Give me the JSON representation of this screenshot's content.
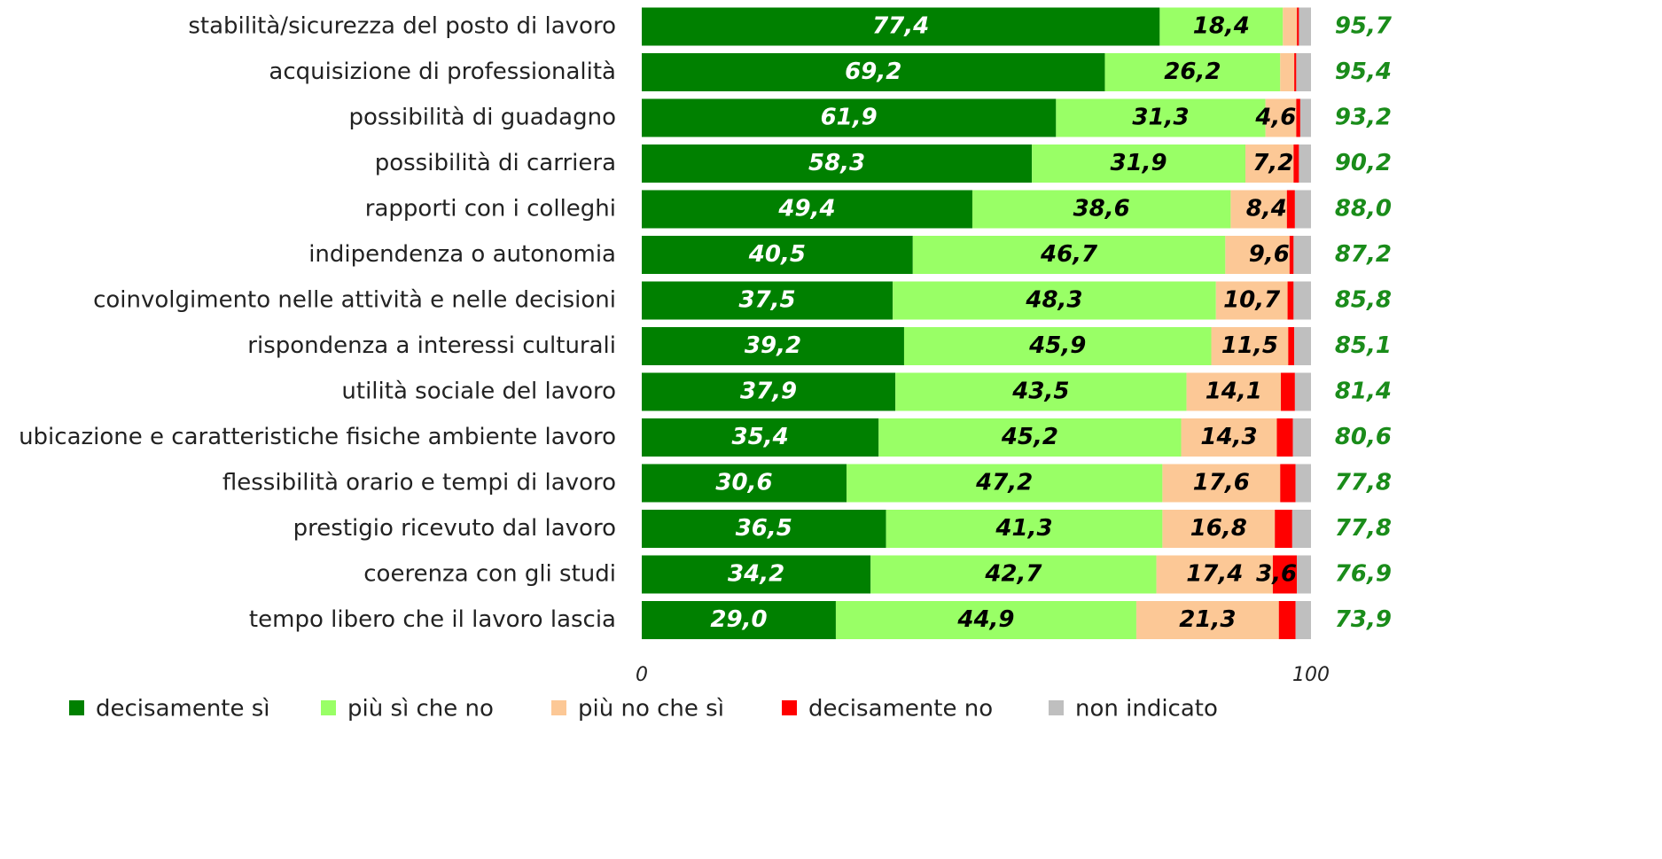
{
  "chart_data": {
    "type": "stacked-bar-horizontal",
    "categories": [
      "stabilità/sicurezza del posto di lavoro",
      "acquisizione di professionalità",
      "possibilità di guadagno",
      "possibilità di carriera",
      "rapporti con i colleghi",
      "indipendenza o autonomia",
      "coinvolgimento nelle attività e nelle decisioni",
      "rispondenza a interessi culturali",
      "utilità sociale del lavoro",
      "ubicazione e caratteristiche fisiche ambiente lavoro",
      "flessibilità orario e tempi di lavoro",
      "prestigio ricevuto dal lavoro",
      "coerenza con gli studi",
      "tempo libero che il lavoro lascia"
    ],
    "series": [
      {
        "name": "decisamente sì",
        "color": "#008000",
        "label_color": "#ffffff",
        "values": [
          77.4,
          69.2,
          61.9,
          58.3,
          49.4,
          40.5,
          37.5,
          39.2,
          37.9,
          35.4,
          30.6,
          36.5,
          34.2,
          29.0
        ],
        "value_labels": [
          "77,4",
          "69,2",
          "61,9",
          "58,3",
          "49,4",
          "40,5",
          "37,5",
          "39,2",
          "37,9",
          "35,4",
          "30,6",
          "36,5",
          "34,2",
          "29,0"
        ]
      },
      {
        "name": "più sì che no",
        "color": "#99ff66",
        "label_color": "#000000",
        "values": [
          18.4,
          26.2,
          31.3,
          31.9,
          38.6,
          46.7,
          48.3,
          45.9,
          43.5,
          45.2,
          47.2,
          41.3,
          42.7,
          44.9
        ],
        "value_labels": [
          "18,4",
          "26,2",
          "31,3",
          "31,9",
          "38,6",
          "46,7",
          "48,3",
          "45,9",
          "43,5",
          "45,2",
          "47,2",
          "41,3",
          "42,7",
          "44,9"
        ]
      },
      {
        "name": "più no che sì",
        "color": "#fcc896",
        "label_color": "#000000",
        "values": [
          2.1,
          2.1,
          4.6,
          7.2,
          8.4,
          9.6,
          10.7,
          11.5,
          14.1,
          14.3,
          17.6,
          16.8,
          17.4,
          21.3
        ],
        "value_labels": [
          null,
          null,
          "4,6",
          "7,2",
          "8,4",
          "9,6",
          "10,7",
          "11,5",
          "14,1",
          "14,3",
          "17,6",
          "16,8",
          "17,4",
          "21,3"
        ]
      },
      {
        "name": "decisamente no",
        "color": "#ff0000",
        "label_color": "#000000",
        "values": [
          0.3,
          0.3,
          0.6,
          0.8,
          1.2,
          0.6,
          0.9,
          0.9,
          2.1,
          2.4,
          2.3,
          2.6,
          3.6,
          2.5
        ],
        "value_labels": [
          null,
          null,
          null,
          null,
          null,
          null,
          null,
          null,
          null,
          null,
          null,
          null,
          "3,6",
          null
        ]
      },
      {
        "name": "non indicato",
        "color": "#bfbfbf",
        "label_color": "#000000",
        "values": [
          1.8,
          2.2,
          1.6,
          1.8,
          2.4,
          2.6,
          2.6,
          2.5,
          2.4,
          2.7,
          2.3,
          2.8,
          2.1,
          2.3
        ],
        "value_labels": [
          null,
          null,
          null,
          null,
          null,
          null,
          null,
          null,
          null,
          null,
          null,
          null,
          null,
          null
        ]
      }
    ],
    "totals": {
      "color": "#1a8c1a",
      "values": [
        95.7,
        95.4,
        93.2,
        90.2,
        88.0,
        87.2,
        85.8,
        85.1,
        81.4,
        80.6,
        77.8,
        77.8,
        76.9,
        73.9
      ],
      "value_labels": [
        "95,7",
        "95,4",
        "93,2",
        "90,2",
        "88,0",
        "87,2",
        "85,8",
        "85,1",
        "81,4",
        "80,6",
        "77,8",
        "77,8",
        "76,9",
        "73,9"
      ]
    },
    "xlim": [
      0,
      100
    ],
    "xticks": [
      0,
      100
    ]
  }
}
